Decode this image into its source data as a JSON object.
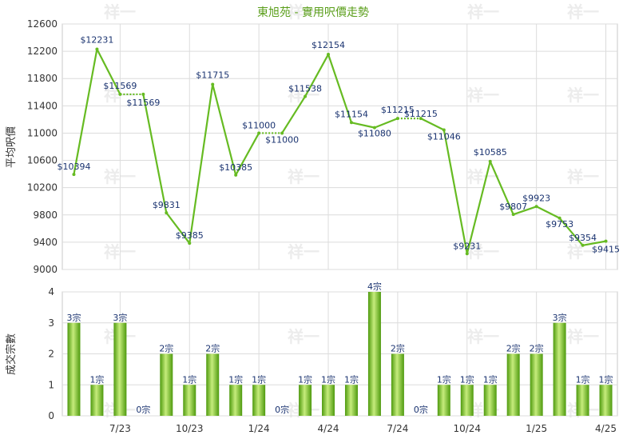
{
  "chart_data": [
    {
      "type": "line",
      "title": "東旭苑 - 實用呎價走勢",
      "ylabel": "平均呎價",
      "ylim": [
        9000,
        12600
      ],
      "yticks": [
        9000,
        9400,
        9800,
        10200,
        10600,
        11000,
        11400,
        11800,
        12200,
        12600
      ],
      "grid": true,
      "series": [
        {
          "values": [
            10394,
            12231,
            11569,
            11569,
            9831,
            9385,
            11715,
            10385,
            11000,
            11000,
            11538,
            12154,
            11154,
            11080,
            11215,
            11215,
            11046,
            9231,
            10585,
            9807,
            9923,
            9753,
            9354,
            9415
          ],
          "labels": [
            "$10394",
            "$12231",
            "$11569",
            "$11569",
            "$9831",
            "$9385",
            "$11715",
            "$10385",
            "$11000",
            "$11000",
            "$11538",
            "$12154",
            "$11154",
            "$11080",
            "$11215",
            "$11215",
            "$11046",
            "$9231",
            "$10585",
            "$9807",
            "$9923",
            "$9753",
            "$9354",
            "$9415"
          ],
          "flat_dotted_after_index": [
            2,
            8,
            14
          ]
        }
      ]
    },
    {
      "type": "bar",
      "ylabel": "成交宗數",
      "ylim": [
        0,
        4
      ],
      "yticks": [
        0,
        1,
        2,
        3,
        4
      ],
      "grid": true,
      "values": [
        3,
        1,
        3,
        0,
        2,
        1,
        2,
        1,
        1,
        0,
        1,
        1,
        1,
        4,
        2,
        0,
        1,
        1,
        1,
        2,
        2,
        3,
        1,
        1
      ],
      "value_labels": [
        "3宗",
        "1宗",
        "3宗",
        "0宗",
        "2宗",
        "1宗",
        "2宗",
        "1宗",
        "1宗",
        "0宗",
        "1宗",
        "1宗",
        "1宗",
        "4宗",
        "2宗",
        "0宗",
        "1宗",
        "1宗",
        "1宗",
        "2宗",
        "2宗",
        "3宗",
        "1宗",
        "1宗"
      ],
      "xtick_labels": [
        {
          "index": 2,
          "label": "7/23"
        },
        {
          "index": 5,
          "label": "10/23"
        },
        {
          "index": 8,
          "label": "1/24"
        },
        {
          "index": 11,
          "label": "4/24"
        },
        {
          "index": 14,
          "label": "7/24"
        },
        {
          "index": 17,
          "label": "10/24"
        },
        {
          "index": 20,
          "label": "1/25"
        },
        {
          "index": 23,
          "label": "4/25"
        }
      ]
    }
  ],
  "watermark": "祥一",
  "colors": {
    "line": "#66bb22",
    "title": "#5a9e1a",
    "label": "#1a3370",
    "grid": "#dcdcdc",
    "bar_dark": "#4e9a0e",
    "bar_light": "#c6ec7c"
  }
}
